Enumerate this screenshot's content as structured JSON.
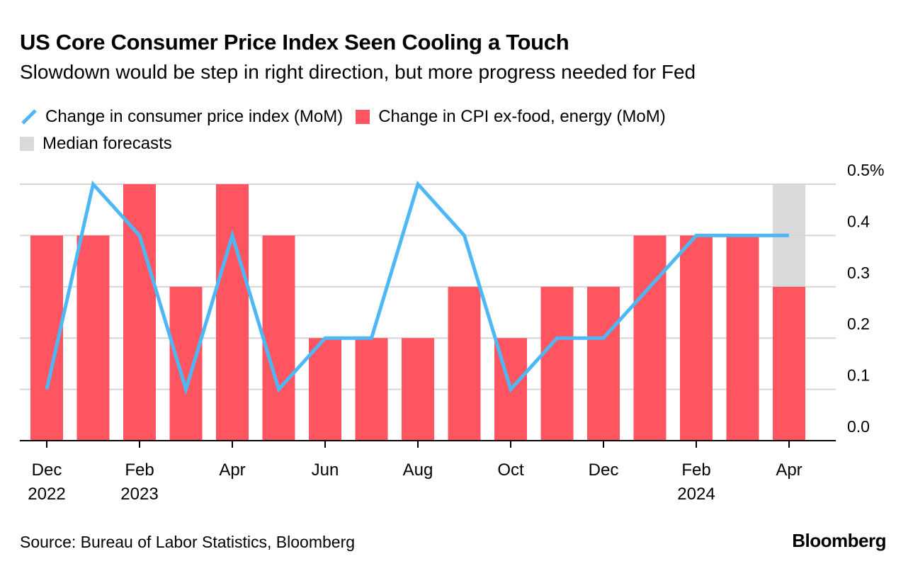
{
  "title": "US Core Consumer Price Index Seen Cooling a Touch",
  "subtitle": "Slowdown would be step in right direction, but more progress needed for Fed",
  "source": "Source: Bureau of Labor Statistics, Bloomberg",
  "logo": "Bloomberg",
  "colors": {
    "line": "#4db8f5",
    "bar": "#ff5561",
    "forecast": "#d9d9d9"
  },
  "chart_data": {
    "type": "bar+line",
    "legend_placement": "top-left",
    "legend": [
      {
        "label": "Change in consumer price index (MoM)",
        "kind": "line"
      },
      {
        "label": "Change in CPI ex-food, energy (MoM)",
        "kind": "bar"
      },
      {
        "label": "Median forecasts",
        "kind": "shade"
      }
    ],
    "categories": [
      "Dec 2022",
      "Jan 2023",
      "Feb 2023",
      "Mar 2023",
      "Apr 2023",
      "May 2023",
      "Jun 2023",
      "Jul 2023",
      "Aug 2023",
      "Sep 2023",
      "Oct 2023",
      "Nov 2023",
      "Dec 2023",
      "Jan 2024",
      "Feb 2024",
      "Mar 2024",
      "Apr 2024"
    ],
    "x_tick_labels": [
      {
        "index": 0,
        "line1": "Dec",
        "line2": "2022"
      },
      {
        "index": 2,
        "line1": "Feb",
        "line2": "2023"
      },
      {
        "index": 4,
        "line1": "Apr",
        "line2": ""
      },
      {
        "index": 6,
        "line1": "Jun",
        "line2": ""
      },
      {
        "index": 8,
        "line1": "Aug",
        "line2": ""
      },
      {
        "index": 10,
        "line1": "Oct",
        "line2": ""
      },
      {
        "index": 12,
        "line1": "Dec",
        "line2": ""
      },
      {
        "index": 14,
        "line1": "Feb",
        "line2": "2024"
      },
      {
        "index": 16,
        "line1": "Apr",
        "line2": ""
      }
    ],
    "series": [
      {
        "name": "Change in CPI ex-food, energy (MoM)",
        "type": "bar",
        "values": [
          0.4,
          0.4,
          0.5,
          0.3,
          0.5,
          0.4,
          0.2,
          0.2,
          0.2,
          0.3,
          0.2,
          0.3,
          0.3,
          0.4,
          0.4,
          0.4,
          0.3
        ]
      },
      {
        "name": "Change in consumer price index (MoM)",
        "type": "line",
        "values": [
          0.1,
          0.5,
          0.4,
          0.1,
          0.4,
          0.1,
          0.2,
          0.2,
          0.5,
          0.4,
          0.1,
          0.2,
          0.2,
          0.3,
          0.4,
          0.4,
          0.4
        ]
      }
    ],
    "forecast_index": 16,
    "y_ticks": [
      "0.0",
      "0.1",
      "0.2",
      "0.3",
      "0.4",
      "0.5%"
    ],
    "ylim": [
      0,
      0.5
    ],
    "y_axis_side": "right",
    "grid": true
  }
}
